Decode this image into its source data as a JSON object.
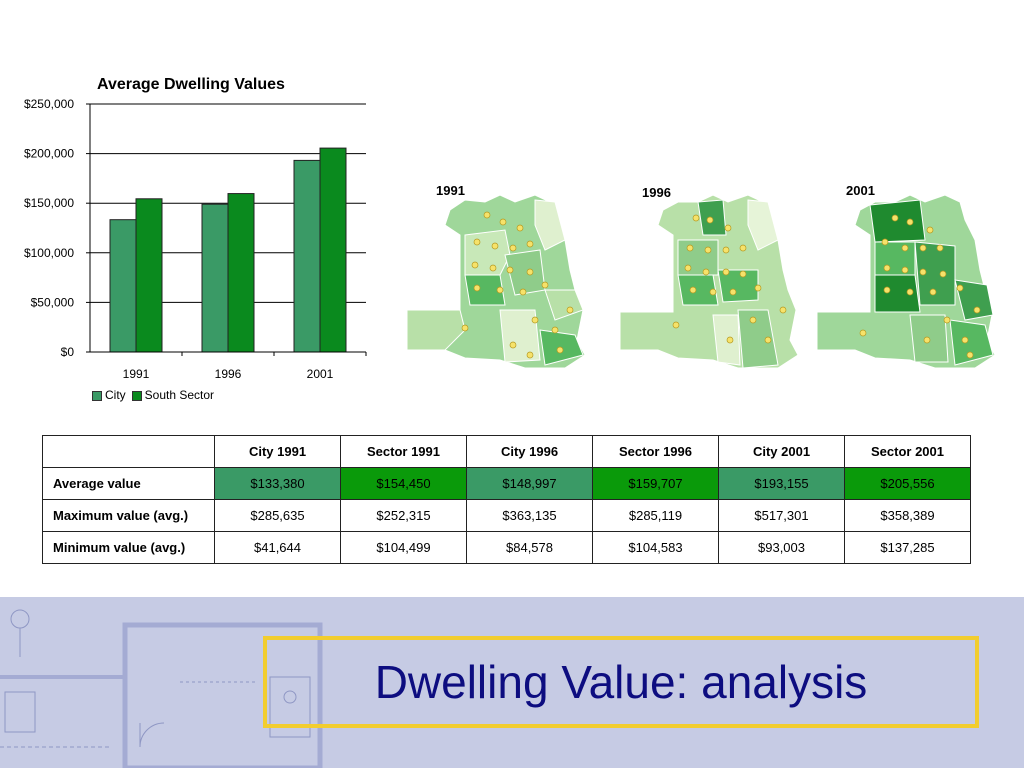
{
  "chart_data": {
    "type": "bar",
    "title": "Average Dwelling Values",
    "categories": [
      "1991",
      "1996",
      "2001"
    ],
    "series": [
      {
        "name": "City",
        "values": [
          133380,
          148997,
          193155
        ],
        "color": "#3a9a66"
      },
      {
        "name": "South Sector",
        "values": [
          154450,
          159707,
          205556
        ],
        "color": "#0a8a1e"
      }
    ],
    "ylim": [
      0,
      250000
    ],
    "yticks": [
      "$0",
      "$50,000",
      "$100,000",
      "$150,000",
      "$200,000",
      "$250,000"
    ],
    "ytick_values": [
      0,
      50000,
      100000,
      150000,
      200000,
      250000
    ],
    "grid": true,
    "legend_position": "bottom-left"
  },
  "maps": [
    {
      "label": "1991"
    },
    {
      "label": "1996"
    },
    {
      "label": "2001"
    }
  ],
  "table": {
    "headers": [
      "",
      "City 1991",
      "Sector 1991",
      "City 1996",
      "Sector 1996",
      "City 2001",
      "Sector 2001"
    ],
    "rows": [
      {
        "label": "Average value",
        "cells": [
          "$133,380",
          "$154,450",
          "$148,997",
          "$159,707",
          "$193,155",
          "$205,556"
        ]
      },
      {
        "label": "Maximum value (avg.)",
        "cells": [
          "$285,635",
          "$252,315",
          "$363,135",
          "$285,119",
          "$517,301",
          "$358,389"
        ]
      },
      {
        "label": "Minimum value (avg.)",
        "cells": [
          "$41,644",
          "$104,499",
          "$84,578",
          "$104,583",
          "$93,003",
          "$137,285"
        ]
      }
    ],
    "highlight_colors": {
      "city": "#3a9a66",
      "sector": "#0a9a0a"
    }
  },
  "slide_title": "Dwelling Value: analysis"
}
